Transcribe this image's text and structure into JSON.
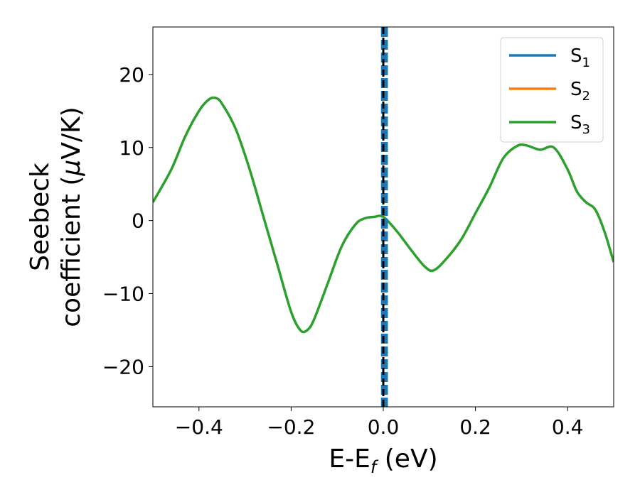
{
  "chart_data": {
    "type": "line",
    "title": "",
    "xlabel": {
      "main": "E-E",
      "sub": "f",
      "tail": " (eV)"
    },
    "ylabel": {
      "line1": "Seebeck",
      "line2_prefix": "coefficient  (",
      "mu": "μ",
      "line2_suffix": "V/K)"
    },
    "xlim": [
      -0.5,
      0.5
    ],
    "ylim": [
      -25.5,
      26.5
    ],
    "xticks": [
      -0.4,
      -0.2,
      0.0,
      0.2,
      0.4
    ],
    "xtick_labels": [
      "−0.4",
      "−0.2",
      "0.0",
      "0.2",
      "0.4"
    ],
    "yticks": [
      -20,
      -10,
      0,
      10,
      20
    ],
    "ytick_labels": [
      "−20",
      "−10",
      "0",
      "10",
      "20"
    ],
    "grid": false,
    "legend_position": "top-right",
    "series": [
      {
        "name": "S",
        "sub": "1",
        "color": "#1f77b4",
        "x": [],
        "y": []
      },
      {
        "name": "S",
        "sub": "2",
        "color": "#ff7f0e",
        "x": [],
        "y": []
      },
      {
        "name": "S",
        "sub": "3",
        "color": "#2ca02c",
        "x": [
          -0.5,
          -0.46,
          -0.43,
          -0.4,
          -0.38,
          -0.365,
          -0.35,
          -0.32,
          -0.29,
          -0.26,
          -0.23,
          -0.2,
          -0.18,
          -0.165,
          -0.15,
          -0.12,
          -0.09,
          -0.06,
          -0.04,
          -0.02,
          0.0,
          0.03,
          0.06,
          0.09,
          0.11,
          0.14,
          0.17,
          0.2,
          0.23,
          0.26,
          0.29,
          0.31,
          0.34,
          0.37,
          0.4,
          0.42,
          0.44,
          0.46,
          0.48,
          0.5
        ],
        "y": [
          2.5,
          7,
          11.5,
          15,
          16.5,
          16.8,
          16,
          12.5,
          7,
          0.5,
          -6,
          -12.5,
          -15,
          -15,
          -13.5,
          -8.5,
          -3.5,
          -0.5,
          0.3,
          0.5,
          0.5,
          -1.5,
          -4,
          -6.3,
          -6.8,
          -5,
          -2.5,
          1,
          4.5,
          8.5,
          10.2,
          10.3,
          9.7,
          10,
          7,
          4,
          2.5,
          1.5,
          -1.5,
          -5.7
        ]
      }
    ],
    "reference_line": {
      "x": 0.0,
      "color": "#000000",
      "style": "dashed"
    },
    "highlight_band": {
      "x": [
        -0.005,
        0.01
      ],
      "color": "#1f77b4",
      "style": "dashed"
    }
  }
}
